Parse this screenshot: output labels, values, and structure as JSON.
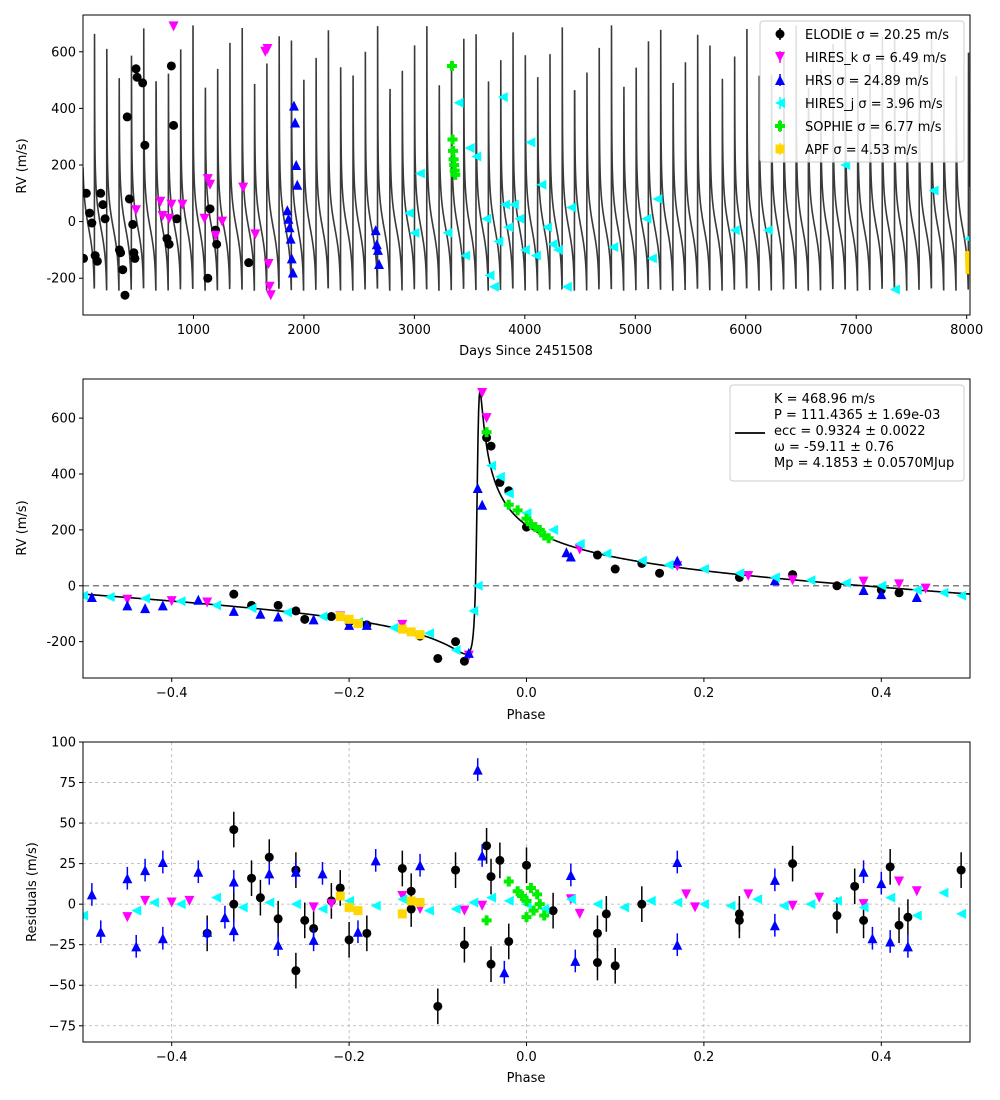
{
  "chart_data": [
    {
      "type": "line",
      "panel": "time-series",
      "xlabel": "Days Since 2451508",
      "ylabel": "RV (m/s)",
      "xlim": [
        0,
        8030
      ],
      "ylim": [
        -330,
        730
      ],
      "xticks": [
        "1000",
        "2000",
        "3000",
        "4000",
        "5000",
        "6000",
        "7000",
        "8000"
      ],
      "yticks": [
        "-200",
        "0",
        "200",
        "400",
        "600"
      ],
      "model": {
        "name": "",
        "color": "#3a3a3a",
        "period": 111.4365,
        "K": 468.96,
        "ecc": 0.9324,
        "omega": -59.11,
        "phase_shift": 7.5
      },
      "legend": {
        "placement": "top-right",
        "entries": [
          {
            "id": "elodie",
            "text": "ELODIE σ = 20.25 m/s"
          },
          {
            "id": "hires_k",
            "text": "HIRES_k σ = 6.49 m/s"
          },
          {
            "id": "hrs",
            "text": "HRS σ = 24.89 m/s"
          },
          {
            "id": "hires_j",
            "text": "HIRES_j σ = 3.96 m/s"
          },
          {
            "id": "sophie",
            "text": "SOPHIE σ = 6.77 m/s"
          },
          {
            "id": "apf",
            "text": "APF σ = 4.53 m/s"
          }
        ]
      },
      "series": [
        {
          "id": "elodie",
          "marker": "circle",
          "color": "#000000",
          "x": [
            5,
            30,
            60,
            80,
            110,
            130,
            160,
            180,
            200,
            330,
            340,
            360,
            380,
            400,
            420,
            450,
            460,
            470,
            480,
            490,
            540,
            560,
            760,
            780,
            800,
            820,
            850,
            1130,
            1150,
            1200,
            1210,
            1500
          ],
          "y": [
            -130,
            100,
            30,
            -5,
            -120,
            -140,
            100,
            60,
            10,
            -100,
            -110,
            -170,
            -260,
            370,
            80,
            -10,
            -110,
            -130,
            540,
            510,
            490,
            270,
            -60,
            -80,
            550,
            340,
            10,
            -200,
            45,
            -30,
            -80,
            -145
          ]
        },
        {
          "id": "hires_k",
          "marker": "tri-down",
          "color": "#ff00ff",
          "x": [
            480,
            700,
            720,
            780,
            800,
            820,
            900,
            1100,
            1130,
            1150,
            1200,
            1260,
            1450,
            1560,
            1650,
            1670,
            1680,
            1690,
            1700
          ],
          "y": [
            40,
            70,
            20,
            10,
            60,
            690,
            60,
            10,
            150,
            130,
            -50,
            0,
            120,
            -45,
            600,
            610,
            -150,
            -230,
            -260
          ]
        },
        {
          "id": "hrs",
          "marker": "tri-up",
          "color": "#0000ff",
          "x": [
            1850,
            1860,
            1870,
            1880,
            1890,
            1900,
            1910,
            1920,
            1930,
            1940,
            2650,
            2660,
            2670,
            2680
          ],
          "y": [
            40,
            10,
            -20,
            -60,
            -130,
            -180,
            410,
            350,
            200,
            130,
            -30,
            -80,
            -100,
            -150
          ]
        },
        {
          "id": "hires_j",
          "marker": "tri-left",
          "color": "#00ffff",
          "x": [
            2950,
            3000,
            3050,
            3300,
            3400,
            3460,
            3500,
            3560,
            3650,
            3680,
            3720,
            3760,
            3800,
            3820,
            3850,
            3900,
            3950,
            4000,
            4050,
            4100,
            4150,
            4200,
            4250,
            4300,
            4380,
            4420,
            4800,
            5100,
            5150,
            5200,
            5900,
            6200,
            6900,
            7350,
            7700,
            8020
          ],
          "y": [
            30,
            -40,
            170,
            -40,
            420,
            -120,
            260,
            230,
            10,
            -190,
            -230,
            -70,
            440,
            60,
            -20,
            60,
            10,
            -100,
            280,
            -120,
            130,
            -20,
            -80,
            -100,
            -230,
            50,
            -90,
            10,
            -130,
            80,
            -30,
            -30,
            200,
            -240,
            110,
            -60
          ]
        },
        {
          "id": "sophie",
          "marker": "plus-filled",
          "color": "#00ee00",
          "x": [
            3340,
            3345,
            3350,
            3355,
            3360,
            3365,
            3370
          ],
          "y": [
            550,
            290,
            250,
            220,
            200,
            180,
            165
          ]
        },
        {
          "id": "apf",
          "marker": "square",
          "color": "#ffd700",
          "x": [
            8025,
            8028,
            8030
          ],
          "y": [
            -120,
            -150,
            -170
          ]
        }
      ]
    },
    {
      "type": "line",
      "panel": "phase-folded",
      "xlabel": "Phase",
      "ylabel": "RV (m/s)",
      "xlim": [
        -0.5,
        0.5
      ],
      "ylim": [
        -330,
        740
      ],
      "xticks": [
        "−0.4",
        "−0.2",
        "0.0",
        "0.2",
        "0.4"
      ],
      "yticks": [
        "-200",
        "0",
        "200",
        "400",
        "600"
      ],
      "zero_line": {
        "y": 0,
        "style": "dashed",
        "color": "#808080"
      },
      "model": {
        "name": "",
        "color": "#000000",
        "K": 468.96,
        "ecc": 0.9324,
        "omega": -59.11
      },
      "legend": {
        "placement": "top-right",
        "lines": [
          "K = 468.96 m/s",
          "P = 111.4365 ± 1.69e-03",
          "ecc = 0.9324 ± 0.0022",
          "ω = -59.11 ± 0.76",
          "Mp = 4.1853 ± 0.0570MJup"
        ]
      },
      "series": [
        {
          "id": "elodie",
          "marker": "circle",
          "color": "#000000",
          "x": [
            -0.33,
            -0.31,
            -0.28,
            -0.26,
            -0.25,
            -0.22,
            -0.2,
            -0.18,
            -0.12,
            -0.1,
            -0.08,
            -0.07,
            -0.045,
            -0.04,
            -0.03,
            -0.02,
            0.0,
            0.08,
            0.1,
            0.13,
            0.15,
            0.24,
            0.3,
            0.35,
            0.4,
            0.42
          ],
          "y": [
            -30,
            -70,
            -70,
            -90,
            -120,
            -110,
            -130,
            -140,
            -180,
            -260,
            -200,
            -270,
            530,
            500,
            370,
            340,
            210,
            110,
            60,
            80,
            45,
            30,
            40,
            0,
            -15,
            -25
          ]
        },
        {
          "id": "hires_k",
          "marker": "tri-down",
          "color": "#ff00ff",
          "x": [
            -0.45,
            -0.4,
            -0.36,
            -0.21,
            -0.14,
            -0.065,
            -0.05,
            -0.045,
            0.06,
            0.17,
            0.25,
            0.3,
            0.38,
            0.42,
            0.45
          ],
          "y": [
            -50,
            -55,
            -60,
            -110,
            -140,
            -250,
            690,
            600,
            130,
            70,
            35,
            20,
            15,
            5,
            -10
          ]
        },
        {
          "id": "hrs",
          "marker": "tri-up",
          "color": "#0000ff",
          "x": [
            -0.49,
            -0.45,
            -0.43,
            -0.41,
            -0.37,
            -0.33,
            -0.3,
            -0.28,
            -0.24,
            -0.2,
            -0.18,
            -0.065,
            -0.055,
            -0.05,
            0.045,
            0.05,
            0.17,
            0.28,
            0.38,
            0.4,
            0.44
          ],
          "y": [
            -40,
            -70,
            -80,
            -70,
            -50,
            -90,
            -100,
            -110,
            -120,
            -140,
            -140,
            -240,
            350,
            290,
            120,
            105,
            90,
            20,
            -15,
            -30,
            -40
          ]
        },
        {
          "id": "hires_j",
          "marker": "tri-left",
          "color": "#00ffff",
          "x": [
            -0.5,
            -0.47,
            -0.43,
            -0.39,
            -0.35,
            -0.31,
            -0.27,
            -0.23,
            -0.19,
            -0.15,
            -0.11,
            -0.08,
            -0.06,
            -0.055,
            -0.04,
            -0.03,
            -0.02,
            0.0,
            0.03,
            0.06,
            0.09,
            0.13,
            0.16,
            0.2,
            0.24,
            0.28,
            0.32,
            0.36,
            0.4,
            0.44,
            0.47,
            0.49
          ],
          "y": [
            -35,
            -40,
            -45,
            -55,
            -70,
            -80,
            -95,
            -110,
            -130,
            -150,
            -170,
            -230,
            -90,
            0,
            430,
            390,
            330,
            260,
            200,
            150,
            115,
            90,
            75,
            60,
            45,
            30,
            20,
            10,
            0,
            -15,
            -25,
            -35
          ]
        },
        {
          "id": "sophie",
          "marker": "plus-filled",
          "color": "#00ee00",
          "x": [
            -0.045,
            -0.02,
            -0.01,
            0.0,
            0.005,
            0.01,
            0.015,
            0.02,
            0.025
          ],
          "y": [
            550,
            290,
            270,
            240,
            220,
            210,
            200,
            180,
            170
          ]
        },
        {
          "id": "apf",
          "marker": "square",
          "color": "#ffd700",
          "x": [
            -0.21,
            -0.2,
            -0.19,
            -0.14,
            -0.13,
            -0.12
          ],
          "y": [
            -110,
            -120,
            -135,
            -155,
            -165,
            -175
          ]
        }
      ]
    },
    {
      "type": "scatter",
      "panel": "residuals",
      "xlabel": "Phase",
      "ylabel": "Residuals (m/s)",
      "xlim": [
        -0.5,
        0.5
      ],
      "ylim": [
        -85,
        100
      ],
      "grid": true,
      "xticks": [
        "−0.4",
        "−0.2",
        "0.0",
        "0.2",
        "0.4"
      ],
      "yticks": [
        "−75",
        "−50",
        "−25",
        "0",
        "25",
        "50",
        "75",
        "100"
      ],
      "series": [
        {
          "id": "elodie",
          "marker": "circle",
          "color": "#000000",
          "x": [
            -0.36,
            -0.33,
            -0.33,
            -0.31,
            -0.3,
            -0.29,
            -0.28,
            -0.26,
            -0.26,
            -0.25,
            -0.24,
            -0.22,
            -0.21,
            -0.2,
            -0.18,
            -0.14,
            -0.13,
            -0.13,
            -0.1,
            -0.08,
            -0.07,
            -0.045,
            -0.04,
            -0.04,
            -0.03,
            -0.02,
            0.0,
            0.03,
            0.08,
            0.08,
            0.09,
            0.1,
            0.13,
            0.24,
            0.24,
            0.3,
            0.35,
            0.37,
            0.38,
            0.41,
            0.42,
            0.43,
            0.49
          ],
          "y": [
            -18,
            46,
            0,
            16,
            4,
            29,
            -9,
            21,
            -41,
            -10,
            -15,
            2,
            10,
            -22,
            -18,
            22,
            8,
            -3,
            -63,
            21,
            -25,
            36,
            17,
            -37,
            27,
            -23,
            24,
            -4,
            -18,
            -36,
            -6,
            -38,
            0,
            -10,
            -6,
            25,
            -7,
            11,
            -10,
            23,
            -13,
            -8,
            21
          ]
        },
        {
          "id": "hires_k",
          "marker": "tri-down",
          "color": "#ff00ff",
          "x": [
            -0.45,
            -0.43,
            -0.4,
            -0.38,
            -0.24,
            -0.22,
            -0.14,
            -0.12,
            -0.07,
            -0.05,
            0.05,
            0.06,
            0.18,
            0.19,
            0.25,
            0.3,
            0.33,
            0.38,
            0.42,
            0.44
          ],
          "y": [
            -8,
            2,
            1,
            2,
            -2,
            0,
            5,
            -3,
            -4,
            -1,
            3,
            -6,
            6,
            -2,
            6,
            -1,
            4,
            0,
            14,
            8
          ]
        },
        {
          "id": "hrs",
          "marker": "tri-up",
          "color": "#0000ff",
          "x": [
            -0.49,
            -0.48,
            -0.45,
            -0.44,
            -0.43,
            -0.41,
            -0.41,
            -0.37,
            -0.36,
            -0.34,
            -0.33,
            -0.33,
            -0.29,
            -0.28,
            -0.26,
            -0.24,
            -0.23,
            -0.19,
            -0.17,
            -0.12,
            -0.055,
            -0.05,
            -0.025,
            0.05,
            0.055,
            0.17,
            0.17,
            0.28,
            0.28,
            0.38,
            0.39,
            0.4,
            0.41,
            0.43
          ],
          "y": [
            6,
            -17,
            16,
            -26,
            21,
            26,
            -21,
            20,
            -17,
            -8,
            14,
            -16,
            19,
            -25,
            20,
            -22,
            19,
            -17,
            27,
            24,
            83,
            30,
            -42,
            18,
            -35,
            26,
            -25,
            15,
            -13,
            20,
            -21,
            13,
            -23,
            -26
          ]
        },
        {
          "id": "hires_j",
          "marker": "tri-left",
          "color": "#00ffff",
          "x": [
            -0.5,
            -0.44,
            -0.42,
            -0.39,
            -0.35,
            -0.32,
            -0.29,
            -0.26,
            -0.23,
            -0.2,
            -0.17,
            -0.14,
            -0.11,
            -0.08,
            -0.06,
            -0.04,
            -0.02,
            0.0,
            0.02,
            0.05,
            0.08,
            0.11,
            0.14,
            0.17,
            0.2,
            0.23,
            0.26,
            0.29,
            0.32,
            0.35,
            0.38,
            0.41,
            0.44,
            0.47,
            0.49
          ],
          "y": [
            -7,
            -4,
            1,
            0,
            4,
            -2,
            1,
            0,
            -3,
            2,
            -1,
            3,
            -4,
            -3,
            1,
            4,
            2,
            0,
            -3,
            3,
            0,
            -2,
            2,
            1,
            0,
            -1,
            3,
            -1,
            0,
            2,
            -2,
            4,
            -7,
            7,
            -6
          ]
        },
        {
          "id": "sophie",
          "marker": "plus-filled",
          "color": "#00ee00",
          "x": [
            -0.045,
            -0.02,
            -0.01,
            -0.005,
            0.0,
            0.0,
            0.005,
            0.008,
            0.012,
            0.015,
            0.02
          ],
          "y": [
            -10,
            14,
            8,
            5,
            -8,
            2,
            10,
            -4,
            6,
            0,
            -7
          ]
        },
        {
          "id": "apf",
          "marker": "square",
          "color": "#ffd700",
          "x": [
            -0.21,
            -0.2,
            -0.19,
            -0.14,
            -0.13,
            -0.12
          ],
          "y": [
            5,
            -2,
            -4,
            -6,
            2,
            1
          ]
        }
      ]
    }
  ]
}
